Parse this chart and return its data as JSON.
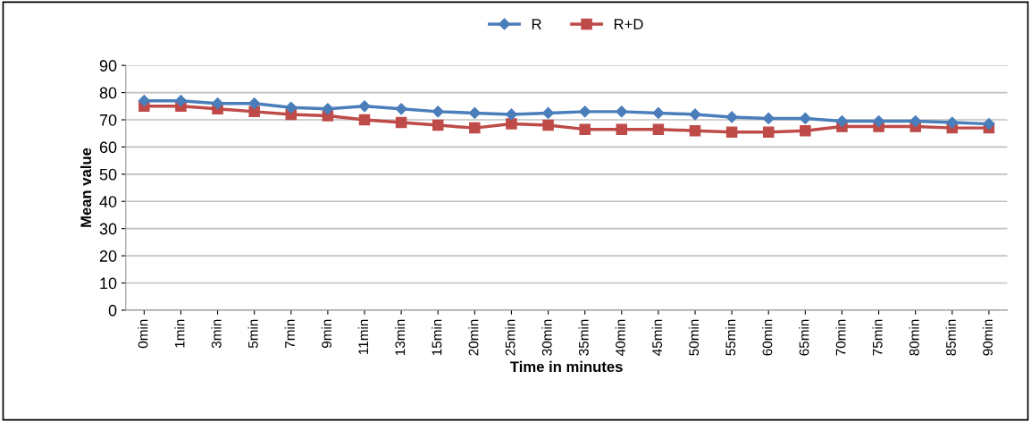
{
  "chart_data": {
    "type": "line",
    "xlabel": "Time in minutes",
    "ylabel": "Mean value",
    "categories": [
      "0min",
      "1min",
      "3min",
      "5min",
      "7min",
      "9min",
      "11min",
      "13min",
      "15min",
      "20min",
      "25min",
      "30min",
      "35min",
      "40min",
      "45min",
      "50min",
      "55min",
      "60min",
      "65min",
      "70min",
      "75min",
      "80min",
      "85min",
      "90min"
    ],
    "series": [
      {
        "name": "R",
        "color": "#4a7ebb",
        "marker": "diamond",
        "values": [
          77,
          77,
          76,
          76,
          74.5,
          74,
          75,
          74,
          73,
          72.5,
          72,
          72.5,
          73,
          73,
          72.5,
          72,
          71,
          70.5,
          70.5,
          69.5,
          69.5,
          69.5,
          69,
          68.5
        ]
      },
      {
        "name": "R+D",
        "color": "#be4b48",
        "marker": "square",
        "values": [
          75,
          75,
          74,
          73,
          72,
          71.5,
          70,
          69,
          68,
          67,
          68.5,
          68,
          66.5,
          66.5,
          66.5,
          66,
          65.5,
          65.5,
          66,
          67.5,
          67.5,
          67.5,
          67,
          67
        ]
      }
    ],
    "ylim": [
      0,
      90
    ],
    "yticks": [
      0,
      10,
      20,
      30,
      40,
      50,
      60,
      70,
      80,
      90
    ],
    "grid": "y",
    "legend": "top",
    "line_style": "solid"
  }
}
